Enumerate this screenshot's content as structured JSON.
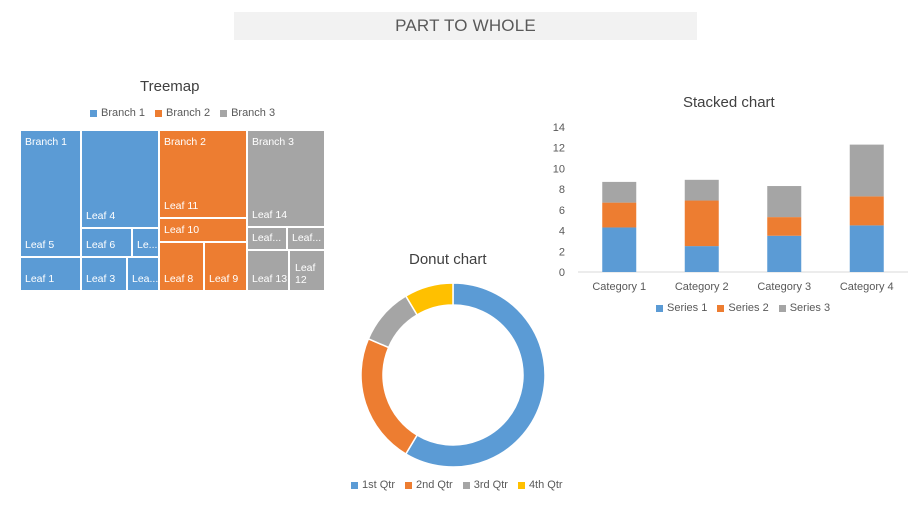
{
  "banner": {
    "title": "PART TO WHOLE"
  },
  "colors": {
    "blue": "#5b9bd5",
    "orange": "#ed7d31",
    "gray": "#a5a5a5",
    "yellow": "#ffc000"
  },
  "chart_data": [
    {
      "type": "treemap",
      "title": "Treemap",
      "legend": [
        "Branch 1",
        "Branch 2",
        "Branch 3"
      ],
      "branch_labels": [
        "Branch 1",
        "Branch 2",
        "Branch 3"
      ],
      "leaves": [
        {
          "branch": "Branch 1",
          "label": "Leaf 5"
        },
        {
          "branch": "Branch 1",
          "label": "Leaf 4"
        },
        {
          "branch": "Branch 1",
          "label": "Leaf 6"
        },
        {
          "branch": "Branch 1",
          "label": "Le..."
        },
        {
          "branch": "Branch 1",
          "label": "Leaf 1"
        },
        {
          "branch": "Branch 1",
          "label": "Leaf 3"
        },
        {
          "branch": "Branch 1",
          "label": "Lea..."
        },
        {
          "branch": "Branch 2",
          "label": "Leaf 11"
        },
        {
          "branch": "Branch 2",
          "label": "Leaf 10"
        },
        {
          "branch": "Branch 2",
          "label": "Leaf 8"
        },
        {
          "branch": "Branch 2",
          "label": "Leaf 9"
        },
        {
          "branch": "Branch 3",
          "label": "Leaf 14"
        },
        {
          "branch": "Branch 3",
          "label": "Leaf..."
        },
        {
          "branch": "Branch 3",
          "label": "Leaf..."
        },
        {
          "branch": "Branch 3",
          "label": "Leaf 13"
        },
        {
          "branch": "Branch 3",
          "label": "Leaf 12"
        }
      ]
    },
    {
      "type": "bar",
      "stacked": true,
      "title": "Stacked chart",
      "categories": [
        "Category 1",
        "Category 2",
        "Category 3",
        "Category 4"
      ],
      "series": [
        {
          "name": "Series 1",
          "values": [
            4.3,
            2.5,
            3.5,
            4.5
          ]
        },
        {
          "name": "Series 2",
          "values": [
            2.4,
            4.4,
            1.8,
            2.8
          ]
        },
        {
          "name": "Series 3",
          "values": [
            2,
            2,
            3,
            5
          ]
        }
      ],
      "ylim": [
        0,
        14
      ],
      "yticks": [
        0,
        2,
        4,
        6,
        8,
        10,
        12,
        14
      ],
      "grid": false,
      "legend_position": "bottom"
    },
    {
      "type": "pie",
      "donut": true,
      "title": "Donut chart",
      "categories": [
        "1st Qtr",
        "2nd Qtr",
        "3rd Qtr",
        "4th Qtr"
      ],
      "values": [
        8.2,
        3.2,
        1.4,
        1.2
      ],
      "legend_position": "bottom"
    }
  ]
}
